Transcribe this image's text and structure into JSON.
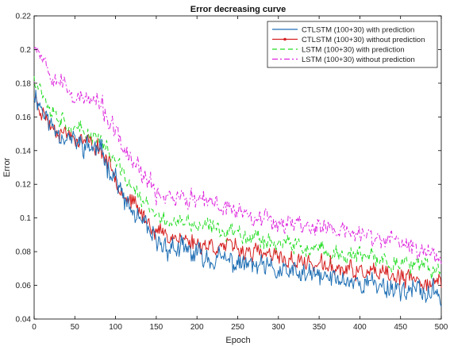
{
  "chart_data": {
    "type": "line",
    "title": "Error decreasing curve",
    "xlabel": "Epoch",
    "ylabel": "Error",
    "xlim": [
      0,
      500
    ],
    "ylim": [
      0.04,
      0.22
    ],
    "xticks": [
      0,
      50,
      100,
      150,
      200,
      250,
      300,
      350,
      400,
      450,
      500
    ],
    "yticks": [
      0.04,
      0.06,
      0.08,
      0.1,
      0.12,
      0.14,
      0.16,
      0.18,
      0.2,
      0.22
    ],
    "ytick_labels": [
      "0.04",
      "0.06",
      "0.08",
      "0.1",
      "0.12",
      "0.14",
      "0.16",
      "0.18",
      "0.2",
      "0.22"
    ],
    "grid": false,
    "legend_position": "top-right",
    "series": [
      {
        "name": "CTLSTM (100+30) with prediction",
        "color": "#1f6fb4",
        "style": "solid",
        "noise": 0.009,
        "seed": 11,
        "knots": [
          [
            0,
            0.175
          ],
          [
            20,
            0.155
          ],
          [
            50,
            0.145
          ],
          [
            80,
            0.14
          ],
          [
            100,
            0.125
          ],
          [
            110,
            0.11
          ],
          [
            150,
            0.085
          ],
          [
            200,
            0.078
          ],
          [
            250,
            0.073
          ],
          [
            300,
            0.068
          ],
          [
            350,
            0.065
          ],
          [
            400,
            0.062
          ],
          [
            450,
            0.058
          ],
          [
            500,
            0.054
          ]
        ]
      },
      {
        "name": "CTLSTM (100+30) without prediction",
        "color": "#d62020",
        "style": "solid-marker",
        "noise": 0.007,
        "seed": 23,
        "knots": [
          [
            0,
            0.172
          ],
          [
            20,
            0.155
          ],
          [
            50,
            0.148
          ],
          [
            80,
            0.142
          ],
          [
            100,
            0.125
          ],
          [
            110,
            0.115
          ],
          [
            150,
            0.092
          ],
          [
            200,
            0.085
          ],
          [
            250,
            0.082
          ],
          [
            300,
            0.076
          ],
          [
            350,
            0.072
          ],
          [
            400,
            0.068
          ],
          [
            450,
            0.064
          ],
          [
            500,
            0.061
          ]
        ]
      },
      {
        "name": "LSTM (100+30) with prediction",
        "color": "#22dd22",
        "style": "dashed",
        "noise": 0.007,
        "seed": 37,
        "knots": [
          [
            0,
            0.185
          ],
          [
            20,
            0.165
          ],
          [
            50,
            0.152
          ],
          [
            80,
            0.148
          ],
          [
            100,
            0.133
          ],
          [
            110,
            0.125
          ],
          [
            150,
            0.1
          ],
          [
            200,
            0.095
          ],
          [
            250,
            0.092
          ],
          [
            300,
            0.085
          ],
          [
            350,
            0.08
          ],
          [
            400,
            0.077
          ],
          [
            450,
            0.073
          ],
          [
            500,
            0.068
          ]
        ]
      },
      {
        "name": "LSTM (100+30) without prediction",
        "color": "#dd22dd",
        "style": "dash-dot",
        "noise": 0.008,
        "seed": 53,
        "knots": [
          [
            0,
            0.205
          ],
          [
            20,
            0.188
          ],
          [
            50,
            0.172
          ],
          [
            80,
            0.168
          ],
          [
            100,
            0.15
          ],
          [
            110,
            0.14
          ],
          [
            150,
            0.115
          ],
          [
            200,
            0.11
          ],
          [
            250,
            0.105
          ],
          [
            300,
            0.098
          ],
          [
            350,
            0.095
          ],
          [
            400,
            0.09
          ],
          [
            450,
            0.085
          ],
          [
            500,
            0.077
          ]
        ]
      }
    ]
  }
}
